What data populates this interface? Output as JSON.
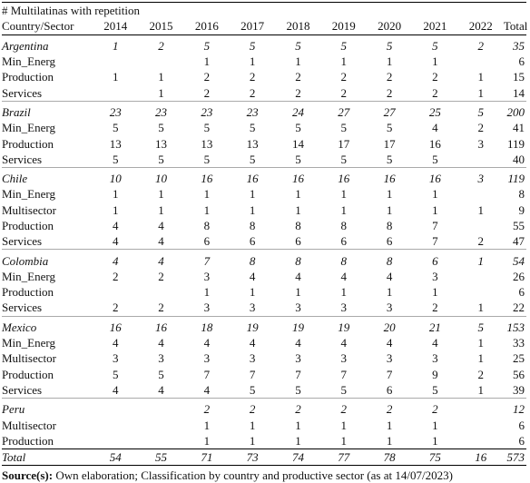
{
  "table": {
    "title": "# Multilatinas with repetition",
    "columns": [
      "Country/Sector",
      "2014",
      "2015",
      "2016",
      "2017",
      "2018",
      "2019",
      "2020",
      "2021",
      "2022",
      "Total"
    ],
    "groups": [
      {
        "country": "Argentina",
        "cells": [
          1,
          2,
          5,
          5,
          5,
          5,
          5,
          5,
          2,
          35
        ],
        "rows": [
          {
            "label": "Min_Energ",
            "cells": [
              null,
              null,
              1,
              1,
              1,
              1,
              1,
              1,
              null,
              6
            ]
          },
          {
            "label": "Production",
            "cells": [
              1,
              1,
              2,
              2,
              2,
              2,
              2,
              2,
              1,
              15
            ]
          },
          {
            "label": "Services",
            "cells": [
              null,
              1,
              2,
              2,
              2,
              2,
              2,
              2,
              1,
              14
            ]
          }
        ]
      },
      {
        "country": "Brazil",
        "cells": [
          23,
          23,
          23,
          23,
          24,
          27,
          27,
          25,
          5,
          200
        ],
        "rows": [
          {
            "label": "Min_Energ",
            "cells": [
              5,
              5,
              5,
              5,
              5,
              5,
              5,
              4,
              2,
              41
            ]
          },
          {
            "label": "Production",
            "cells": [
              13,
              13,
              13,
              13,
              14,
              17,
              17,
              16,
              3,
              119
            ]
          },
          {
            "label": "Services",
            "cells": [
              5,
              5,
              5,
              5,
              5,
              5,
              5,
              5,
              null,
              40
            ]
          }
        ]
      },
      {
        "country": "Chile",
        "cells": [
          10,
          10,
          16,
          16,
          16,
          16,
          16,
          16,
          3,
          119
        ],
        "rows": [
          {
            "label": "Min_Energ",
            "cells": [
              1,
              1,
              1,
              1,
              1,
              1,
              1,
              1,
              null,
              8
            ]
          },
          {
            "label": "Multisector",
            "cells": [
              1,
              1,
              1,
              1,
              1,
              1,
              1,
              1,
              1,
              9
            ]
          },
          {
            "label": "Production",
            "cells": [
              4,
              4,
              8,
              8,
              8,
              8,
              8,
              7,
              null,
              55
            ]
          },
          {
            "label": "Services",
            "cells": [
              4,
              4,
              6,
              6,
              6,
              6,
              6,
              7,
              2,
              47
            ]
          }
        ]
      },
      {
        "country": "Colombia",
        "cells": [
          4,
          4,
          7,
          8,
          8,
          8,
          8,
          6,
          1,
          54
        ],
        "rows": [
          {
            "label": "Min_Energ",
            "cells": [
              2,
              2,
              3,
              4,
              4,
              4,
              4,
              3,
              null,
              26
            ]
          },
          {
            "label": "Production",
            "cells": [
              null,
              null,
              1,
              1,
              1,
              1,
              1,
              1,
              null,
              6
            ]
          },
          {
            "label": "Services",
            "cells": [
              2,
              2,
              3,
              3,
              3,
              3,
              3,
              2,
              1,
              22
            ]
          }
        ]
      },
      {
        "country": "Mexico",
        "cells": [
          16,
          16,
          18,
          19,
          19,
          19,
          20,
          21,
          5,
          153
        ],
        "rows": [
          {
            "label": "Min_Energ",
            "cells": [
              4,
              4,
              4,
              4,
              4,
              4,
              4,
              4,
              1,
              33
            ]
          },
          {
            "label": "Multisector",
            "cells": [
              3,
              3,
              3,
              3,
              3,
              3,
              3,
              3,
              1,
              25
            ]
          },
          {
            "label": "Production",
            "cells": [
              5,
              5,
              7,
              7,
              7,
              7,
              7,
              9,
              2,
              56
            ]
          },
          {
            "label": "Services",
            "cells": [
              4,
              4,
              4,
              5,
              5,
              5,
              6,
              5,
              1,
              39
            ]
          }
        ]
      },
      {
        "country": "Peru",
        "cells": [
          null,
          null,
          2,
          2,
          2,
          2,
          2,
          2,
          null,
          12
        ],
        "rows": [
          {
            "label": "Multisector",
            "cells": [
              null,
              null,
              1,
              1,
              1,
              1,
              1,
              1,
              null,
              6
            ]
          },
          {
            "label": "Production",
            "cells": [
              null,
              null,
              1,
              1,
              1,
              1,
              1,
              1,
              null,
              6
            ]
          }
        ]
      }
    ],
    "total": {
      "label": "Total",
      "cells": [
        54,
        55,
        71,
        73,
        74,
        77,
        78,
        75,
        16,
        573
      ]
    },
    "source": {
      "label": "Source(s):",
      "text": "Own elaboration; Classification by country and productive sector (as at 14/07/2023)"
    }
  }
}
